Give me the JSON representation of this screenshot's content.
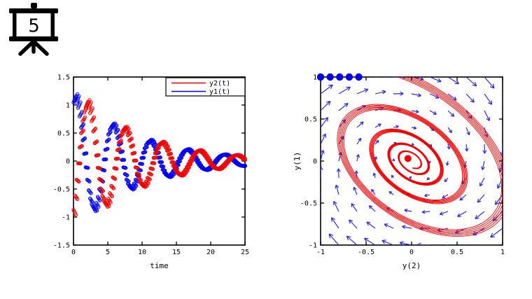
{
  "slide": {
    "number": "5"
  },
  "colors": {
    "red": "#ee0000",
    "blue": "#0000f0",
    "quiver_blue": "#2828d8",
    "legend_red": "#ff0000",
    "legend_blue": "#0000ff",
    "axis": "#000000",
    "background": "#ffffff",
    "icon": "#000000"
  },
  "chart_data": [
    {
      "type": "line",
      "id": "time-series",
      "title": "",
      "xlabel": "time",
      "ylabel": "",
      "xlim": [
        0,
        25
      ],
      "ylim": [
        -1.5,
        1.5
      ],
      "xticks": [
        0,
        5,
        10,
        15,
        20,
        25
      ],
      "yticks": [
        -1.5,
        -1,
        -0.5,
        0,
        0.5,
        1,
        1.5
      ],
      "grid": false,
      "box": true,
      "marker": "o",
      "marker_radius_px": 2.2,
      "band_copies": 5,
      "band_time_shift": 0.09,
      "band_amp_step": 0.025,
      "legend": {
        "position": "top-right",
        "entries": [
          {
            "label": "y2(t)",
            "color": "#ff0000"
          },
          {
            "label": "y1(t)",
            "color": "#0000ff"
          }
        ]
      },
      "series": [
        {
          "name": "y2(t)",
          "color": "#ee0000",
          "model": {
            "amplitude": 1.28,
            "decay": 0.105,
            "omega": 1.16,
            "phase": -0.8
          },
          "t": [
            0,
            1,
            2,
            3,
            4,
            5,
            6,
            7,
            8,
            9,
            10,
            11,
            12,
            13,
            14,
            15,
            16,
            17,
            18,
            19,
            20,
            21,
            22,
            23,
            24,
            25
          ],
          "y": [
            -0.92,
            0.41,
            1.04,
            0.42,
            -0.54,
            -0.73,
            -0.08,
            0.53,
            0.45,
            -0.11,
            -0.44,
            -0.23,
            0.19,
            0.32,
            0.08,
            -0.21,
            -0.21,
            0.02,
            0.18,
            0.12,
            -0.06,
            -0.14,
            -0.05,
            0.08,
            0.1,
            0.01
          ]
        },
        {
          "name": "y1(t)",
          "color": "#0000f0",
          "model": {
            "amplitude": 1.17,
            "decay": 0.105,
            "omega": 1.16,
            "phase": 1.22
          },
          "t": [
            0,
            1,
            2,
            3,
            4,
            5,
            6,
            7,
            8,
            9,
            10,
            11,
            12,
            13,
            14,
            15,
            16,
            17,
            18,
            19,
            20,
            21,
            22,
            23,
            24,
            25
          ],
          "y": [
            1.1,
            0.73,
            -0.37,
            -0.85,
            -0.31,
            0.47,
            0.59,
            0.05,
            -0.44,
            -0.36,
            0.1,
            0.36,
            0.18,
            -0.17,
            -0.27,
            -0.06,
            0.17,
            0.17,
            -0.02,
            -0.15,
            -0.09,
            0.06,
            0.12,
            0.04,
            -0.07,
            -0.08
          ]
        }
      ]
    },
    {
      "type": "line",
      "id": "phase-portrait",
      "title": "",
      "xlabel": "y(2)",
      "ylabel": "y(1)",
      "xlim": [
        -1,
        1
      ],
      "ylim": [
        -1,
        1
      ],
      "xticks": [
        -1,
        -0.5,
        0,
        0.5,
        1
      ],
      "yticks": [
        -1,
        -0.5,
        0,
        0.5,
        1
      ],
      "grid": false,
      "box": true,
      "trajectory": {
        "description": "parametric curve (y2(t), y1(t)) of the time-series models, t = 0..25, clockwise inward spiral",
        "color": "#ee0000",
        "t_range": [
          0,
          25
        ],
        "band_amp_scales": [
          0.955,
          0.973,
          0.991,
          1.009,
          1.027,
          1.045
        ],
        "band_omega_step": 0.0012
      },
      "equilibrium_point": {
        "xy": [
          -0.04,
          0.03
        ],
        "color": "#ee0000",
        "radius_px": 5
      },
      "history_points": {
        "xy": [
          [
            -1,
            1
          ],
          [
            -0.895,
            1
          ],
          [
            -0.79,
            1
          ],
          [
            -0.685,
            1
          ],
          [
            -0.58,
            1
          ]
        ],
        "color": "#0000f0",
        "radius_px": 5.2
      },
      "vector_field": {
        "type": "quiver",
        "color": "#2828d8",
        "grid": {
          "min": -1,
          "max": 1,
          "step": 0.2
        },
        "u": "y - 0.22*x",
        "v": "-x - 0.22*y",
        "arrow_scale": 0.13
      }
    }
  ]
}
